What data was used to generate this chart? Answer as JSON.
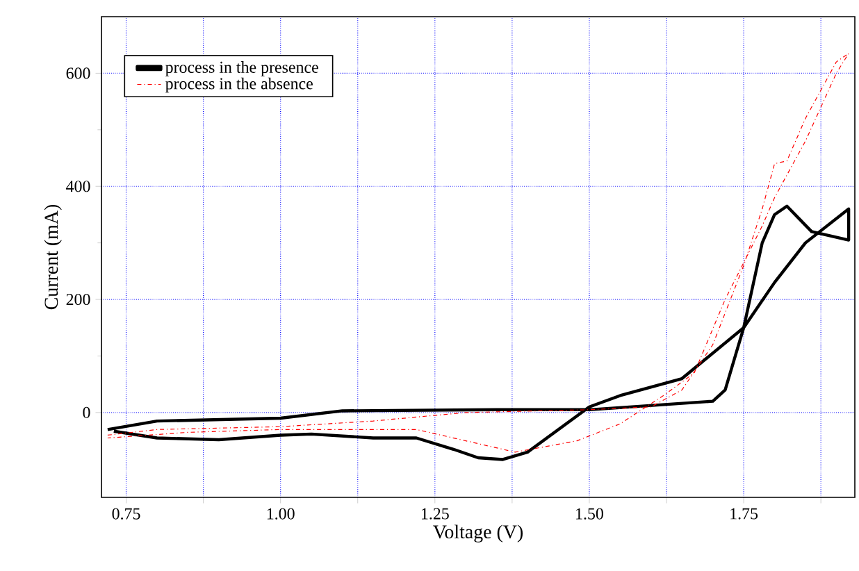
{
  "chart_data": {
    "type": "line",
    "xlabel": "Voltage (V)",
    "ylabel": "Current (mA)",
    "xlim": [
      0.71,
      1.93
    ],
    "ylim": [
      -150,
      700
    ],
    "xticks": [
      0.75,
      {
        "value": 0.875,
        "label": null
      },
      {
        "value": 1,
        "label": "1.00"
      },
      {
        "value": 1.125,
        "label": null
      },
      1.25,
      {
        "value": 1.375,
        "label": null
      },
      {
        "value": 1.5,
        "label": "1.50"
      },
      {
        "value": 1.625,
        "label": null
      },
      1.75,
      {
        "value": 1.875,
        "label": null
      }
    ],
    "yticks": [
      0,
      200,
      400,
      600
    ],
    "grid": true,
    "legend": "top left",
    "series": [
      {
        "name": "process in the presence",
        "color": "#000000",
        "line_style": "solid",
        "x": [
          0.72,
          0.8,
          1.0,
          1.1,
          1.35,
          1.5,
          1.7,
          1.72,
          1.75,
          1.78,
          1.8,
          1.82,
          1.86,
          1.92,
          1.92,
          1.85,
          1.8,
          1.75,
          1.65,
          1.55,
          1.5,
          1.45,
          1.4,
          1.36,
          1.32,
          1.28,
          1.22,
          1.15,
          1.05,
          1.0,
          0.9,
          0.8,
          0.73
        ],
        "values": [
          -30,
          -15,
          -10,
          3,
          5,
          5,
          20,
          40,
          150,
          300,
          350,
          365,
          320,
          305,
          360,
          300,
          230,
          150,
          60,
          30,
          10,
          -30,
          -70,
          -83,
          -80,
          -65,
          -45,
          -45,
          -38,
          -40,
          -48,
          -45,
          -33
        ]
      },
      {
        "name": "process in the absence",
        "color": "#ff0000",
        "line_style": "dashed",
        "x": [
          0.72,
          0.8,
          1.0,
          1.15,
          1.3,
          1.5,
          1.6,
          1.65,
          1.7,
          1.75,
          1.78,
          1.8,
          1.82,
          1.85,
          1.9,
          1.92,
          1.9,
          1.85,
          1.82,
          1.8,
          1.78,
          1.72,
          1.67,
          1.62,
          1.55,
          1.48,
          1.38,
          1.3,
          1.22,
          1.1,
          1.0,
          0.85,
          0.72
        ],
        "values": [
          -40,
          -30,
          -25,
          -15,
          0,
          5,
          10,
          40,
          120,
          260,
          360,
          440,
          445,
          520,
          620,
          635,
          600,
          480,
          420,
          380,
          330,
          200,
          70,
          30,
          -20,
          -50,
          -70,
          -50,
          -30,
          -30,
          -30,
          -35,
          -45
        ]
      }
    ]
  }
}
